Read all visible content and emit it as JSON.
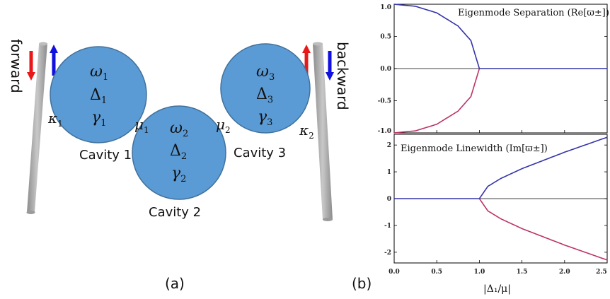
{
  "panel_a": {
    "label": "(a)",
    "side_labels": {
      "left": "forward",
      "right": "backward"
    },
    "cavities": [
      {
        "label": "Cavity 1",
        "omega": "ω",
        "delta": "Δ",
        "gamma": "γ",
        "index": "1"
      },
      {
        "label": "Cavity 2",
        "omega": "ω",
        "delta": "Δ",
        "gamma": "γ",
        "index": "2"
      },
      {
        "label": "Cavity 3",
        "omega": "ω",
        "delta": "Δ",
        "gamma": "γ",
        "index": "3"
      }
    ],
    "couplings": [
      {
        "symbol": "κ",
        "index": "1"
      },
      {
        "symbol": "μ",
        "index": "1"
      },
      {
        "symbol": "μ",
        "index": "2"
      },
      {
        "symbol": "κ",
        "index": "2"
      }
    ],
    "colors": {
      "cavity_fill": "#5b9bd5",
      "cavity_stroke": "#41719c",
      "waveguide": "#a6a6a6",
      "arrow_red": "#e81818",
      "arrow_blue": "#1010e0"
    }
  },
  "panel_b": {
    "label": "(b)",
    "xlabel": "|Δ₁/μ|",
    "colors": {
      "upper_branch": "#3333aa",
      "lower_branch": "#bb3366",
      "axis_line": "#000000"
    }
  },
  "chart_data": [
    {
      "type": "line",
      "title": "Eigenmode Separation (Re[ϖ±])",
      "xlabel": "|Δ₁/μ|",
      "xlim": [
        0,
        2.5
      ],
      "ylim": [
        -1.0,
        1.0
      ],
      "xticks": [
        "0.0",
        "0.5",
        "1.0",
        "1.5",
        "2.0",
        "2.5"
      ],
      "yticks": [
        "1.0",
        "0.5",
        "0.0",
        "-0.5",
        "-1.0"
      ],
      "series": [
        {
          "x": [
            0,
            0.25,
            0.5,
            0.75,
            0.9,
            1.0
          ],
          "values": [
            1.0,
            0.968,
            0.866,
            0.661,
            0.436,
            0.0
          ]
        },
        {
          "x": [
            0,
            0.25,
            0.5,
            0.75,
            0.9,
            1.0
          ],
          "values": [
            -1.0,
            -0.968,
            -0.866,
            -0.661,
            -0.436,
            0.0
          ]
        },
        {
          "x": [
            1.0,
            1.5,
            2.0,
            2.5
          ],
          "values": [
            0,
            0,
            0,
            0
          ]
        }
      ],
      "grid": false
    },
    {
      "type": "line",
      "title": "Eigenmode Linewidth (Im[ϖ±])",
      "xlabel": "|Δ₁/μ|",
      "xlim": [
        0,
        2.5
      ],
      "ylim": [
        -2.4,
        2.4
      ],
      "xticks": [
        "0.0",
        "0.5",
        "1.0",
        "1.5",
        "2.0",
        "2.5"
      ],
      "yticks": [
        "2",
        "1",
        "0",
        "-1",
        "-2"
      ],
      "series": [
        {
          "x": [
            0,
            0.5,
            1.0
          ],
          "values": [
            0,
            0,
            0
          ]
        },
        {
          "x": [
            1.0,
            1.1,
            1.25,
            1.5,
            2.0,
            2.5
          ],
          "values": [
            0,
            0.458,
            0.75,
            1.118,
            1.732,
            2.291
          ]
        },
        {
          "x": [
            1.0,
            1.1,
            1.25,
            1.5,
            2.0,
            2.5
          ],
          "values": [
            0,
            -0.458,
            -0.75,
            -1.118,
            -1.732,
            -2.291
          ]
        }
      ],
      "grid": false
    }
  ]
}
